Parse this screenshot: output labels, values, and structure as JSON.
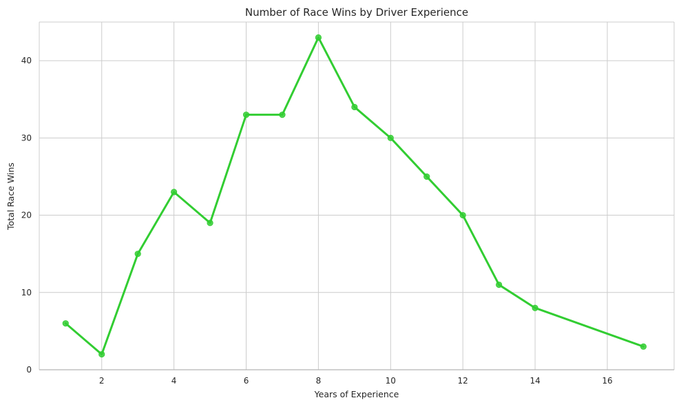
{
  "chart_data": {
    "type": "line",
    "title": "Number of Race Wins by Driver Experience",
    "xlabel": "Years of Experience",
    "ylabel": "Total Race Wins",
    "xlim": [
      0.27,
      17.85
    ],
    "ylim": [
      0,
      45
    ],
    "xticks": [
      2,
      4,
      6,
      8,
      10,
      12,
      14,
      16
    ],
    "yticks": [
      0,
      10,
      20,
      30,
      40
    ],
    "grid": true,
    "series": [
      {
        "color": "#32cd32",
        "x": [
          1,
          2,
          3,
          4,
          5,
          6,
          7,
          8,
          9,
          10,
          11,
          12,
          13,
          14,
          17
        ],
        "y": [
          6,
          2,
          15,
          23,
          19,
          33,
          33,
          43,
          34,
          30,
          25,
          20,
          11,
          8,
          3
        ]
      }
    ]
  }
}
